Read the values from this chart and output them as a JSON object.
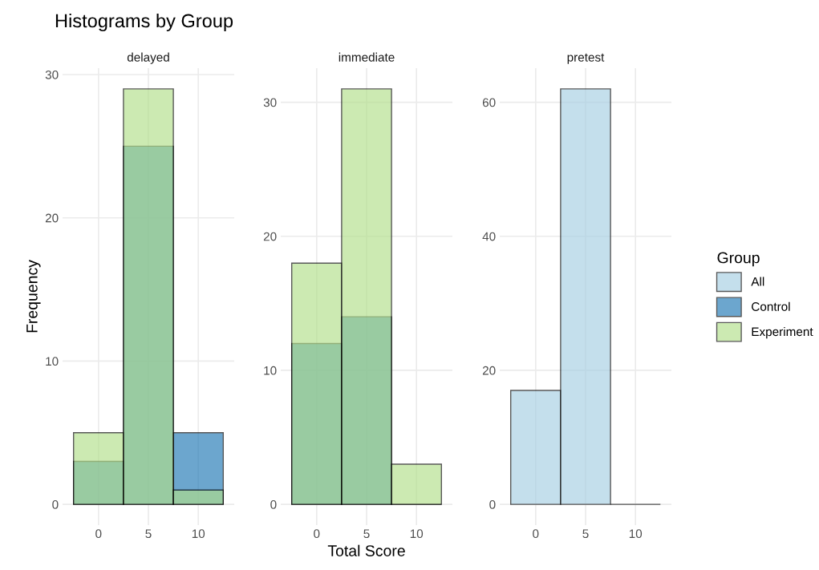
{
  "chart_data": [
    {
      "type": "histogram",
      "title": "Histograms by Group",
      "subtitle": "delayed",
      "ylabel": "Frequency",
      "legend_title": "Group",
      "legend": "right",
      "grid": true,
      "bins": [
        -2.5,
        2.5,
        7.5,
        12.5
      ],
      "xlim": [
        -3.6,
        13.6
      ],
      "xticks": [
        0,
        5,
        10
      ],
      "ylim": [
        -1.45,
        30.45
      ],
      "yticks": [
        0,
        10,
        20,
        30
      ],
      "series": [
        {
          "name": "Control",
          "color": "#1f78b4",
          "values": [
            3,
            25,
            5
          ]
        },
        {
          "name": "Experiment",
          "color": "#b2df8a",
          "values": [
            5,
            29,
            1
          ]
        }
      ]
    },
    {
      "type": "histogram",
      "subtitle": "immediate",
      "xlabel": "Total Score",
      "legend": "right",
      "grid": true,
      "bins": [
        -2.5,
        2.5,
        7.5,
        12.5
      ],
      "xlim": [
        -3.6,
        13.6
      ],
      "xticks": [
        0,
        5,
        10
      ],
      "ylim": [
        -1.55,
        32.55
      ],
      "yticks": [
        0,
        10,
        20,
        30
      ],
      "series": [
        {
          "name": "Control",
          "color": "#1f78b4",
          "values": [
            12,
            14,
            0
          ]
        },
        {
          "name": "Experiment",
          "color": "#b2df8a",
          "values": [
            18,
            31,
            3
          ]
        }
      ]
    },
    {
      "type": "histogram",
      "subtitle": "pretest",
      "legend": "right",
      "grid": true,
      "bins": [
        -2.5,
        2.5,
        7.5,
        12.5
      ],
      "xlim": [
        -3.6,
        13.6
      ],
      "xticks": [
        0,
        5,
        10
      ],
      "ylim": [
        -3.1,
        65.1
      ],
      "yticks": [
        0,
        20,
        40,
        60
      ],
      "series": [
        {
          "name": "All",
          "color": "#a6cee3",
          "values": [
            17,
            62,
            0
          ]
        }
      ]
    }
  ]
}
